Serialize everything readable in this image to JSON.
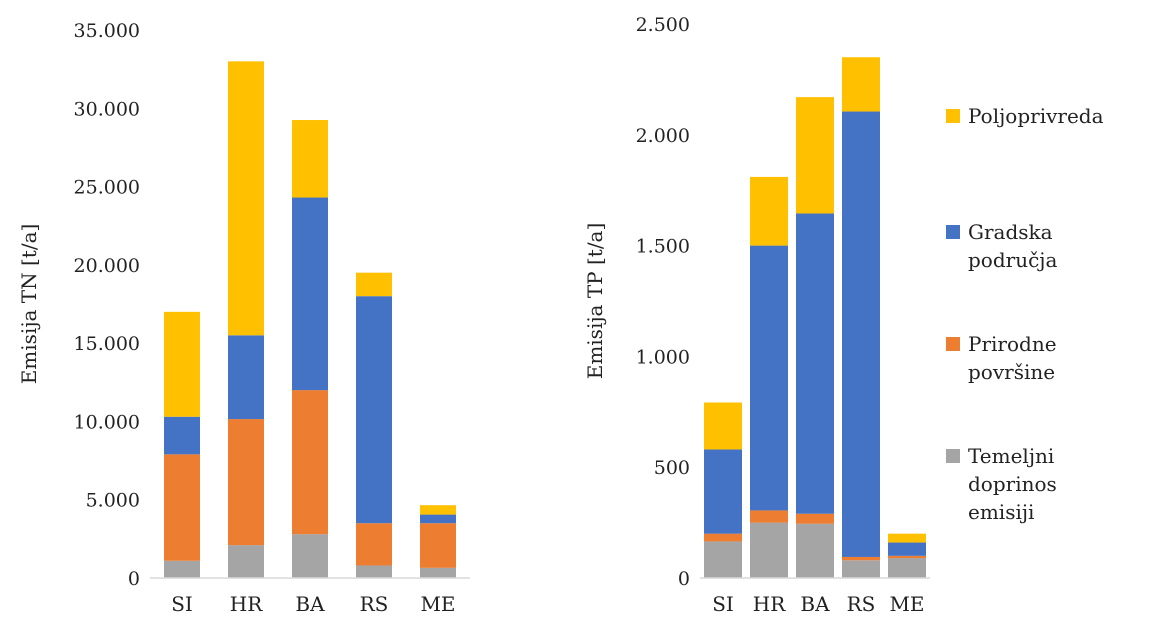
{
  "chart_data": [
    {
      "type": "bar",
      "stacked": true,
      "categories": [
        "SI",
        "HR",
        "BA",
        "RS",
        "ME"
      ],
      "ylabel": "Emisija TN [t/a]",
      "ylim": [
        0,
        35000
      ],
      "yticks": [
        0,
        5000,
        10000,
        15000,
        20000,
        25000,
        30000,
        35000
      ],
      "ytick_labels": [
        "0",
        "5.000",
        "10.000",
        "15.000",
        "20.000",
        "25.000",
        "30.000",
        "35.000"
      ],
      "grid": false,
      "series": [
        {
          "name": "Temeljni doprinos emisiji",
          "values": [
            1100,
            2100,
            2800,
            800,
            650
          ]
        },
        {
          "name": "Prirodne površine",
          "values": [
            6800,
            8050,
            9200,
            2700,
            2850
          ]
        },
        {
          "name": "Gradska područja",
          "values": [
            2400,
            5350,
            12300,
            14500,
            550
          ]
        },
        {
          "name": "Poljoprivreda",
          "values": [
            6700,
            17500,
            4950,
            1500,
            600
          ]
        }
      ]
    },
    {
      "type": "bar",
      "stacked": true,
      "categories": [
        "SI",
        "HR",
        "BA",
        "RS",
        "ME"
      ],
      "ylabel": "Emisija TP [t/a]",
      "ylim": [
        0,
        2500
      ],
      "yticks": [
        0,
        500,
        1000,
        1500,
        2000,
        2500
      ],
      "ytick_labels": [
        "0",
        "500",
        "1.000",
        "1.500",
        "2.000",
        "2.500"
      ],
      "grid": false,
      "series": [
        {
          "name": "Temeljni doprinos emisiji",
          "values": [
            165,
            250,
            245,
            80,
            90
          ]
        },
        {
          "name": "Prirodne površine",
          "values": [
            35,
            55,
            45,
            15,
            10
          ]
        },
        {
          "name": "Gradska područja",
          "values": [
            380,
            1195,
            1355,
            2010,
            60
          ]
        },
        {
          "name": "Poljoprivreda",
          "values": [
            212,
            310,
            525,
            245,
            40
          ]
        }
      ]
    }
  ],
  "legend": {
    "placement": "right",
    "items": [
      {
        "label": "Poljoprivreda",
        "color": "#FFC000"
      },
      {
        "label": "Gradska\npodručja",
        "color": "#4472C4"
      },
      {
        "label": "Prirodne\npovršine",
        "color": "#ED7D31"
      },
      {
        "label": "Temeljni\ndoprinos\nemisiji",
        "color": "#A5A5A5"
      }
    ]
  },
  "colors": {
    "Temeljni doprinos emisiji": "#A5A5A5",
    "Prirodne površine": "#ED7D31",
    "Gradska područja": "#4472C4",
    "Poljoprivreda": "#FFC000",
    "axis": "#D9D9D9"
  }
}
